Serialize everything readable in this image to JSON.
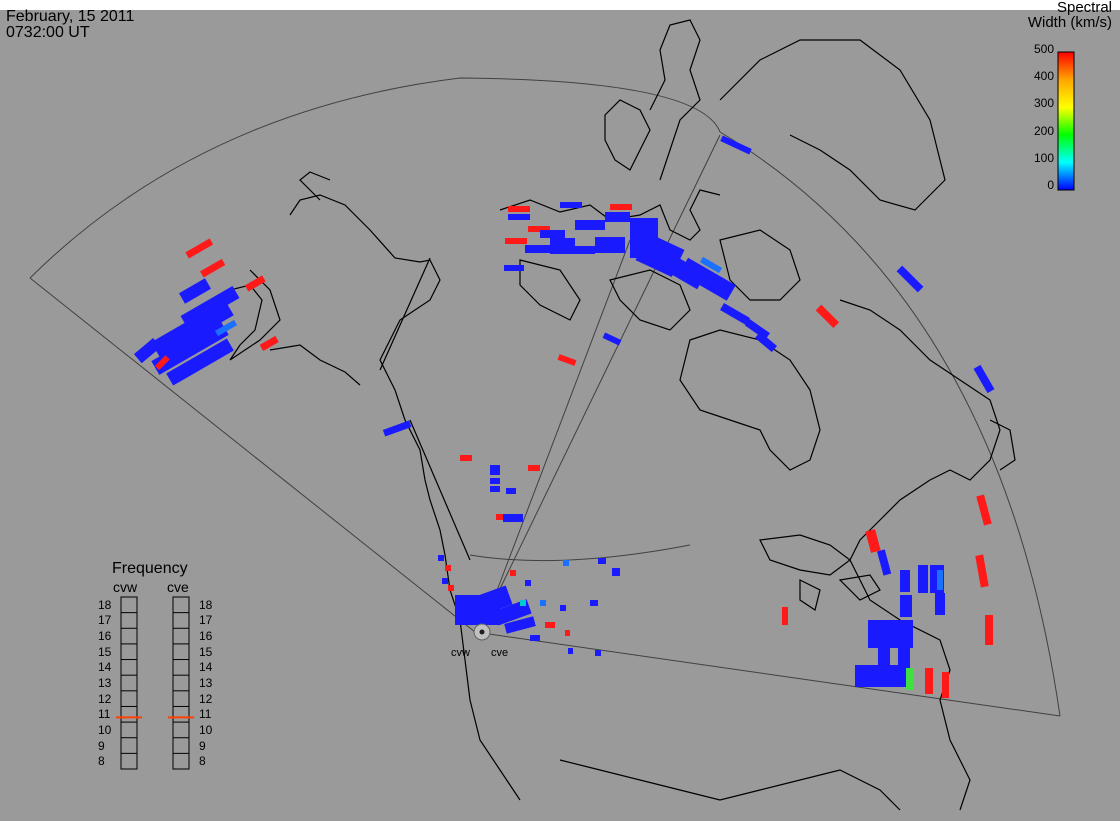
{
  "header": {
    "date": "February, 15 2011",
    "time": "0732:00 UT"
  },
  "colorbar": {
    "title_line1": "Spectral",
    "title_line2": "Width (km/s)",
    "ticks": [
      "500",
      "400",
      "300",
      "200",
      "100",
      "0"
    ],
    "colors": [
      "#ff0000",
      "#ffa500",
      "#ffff00",
      "#00ff00",
      "#00ffff",
      "#0000ff"
    ]
  },
  "frequency": {
    "title": "Frequency",
    "radars": [
      "cvw",
      "cve"
    ],
    "ticks": [
      "18",
      "17",
      "16",
      "15",
      "14",
      "13",
      "12",
      "11",
      "10",
      "9",
      "8"
    ],
    "current": {
      "cvw": 10.8,
      "cve": 10.8
    }
  },
  "map": {
    "radar_labels": [
      "cvw",
      "cve"
    ],
    "colors": {
      "background": "#9a9a9a",
      "land_outline": "#000000",
      "fov": "#333333",
      "low": "#1a1aff",
      "high": "#ff1a1a",
      "mid": "#40e040"
    }
  }
}
